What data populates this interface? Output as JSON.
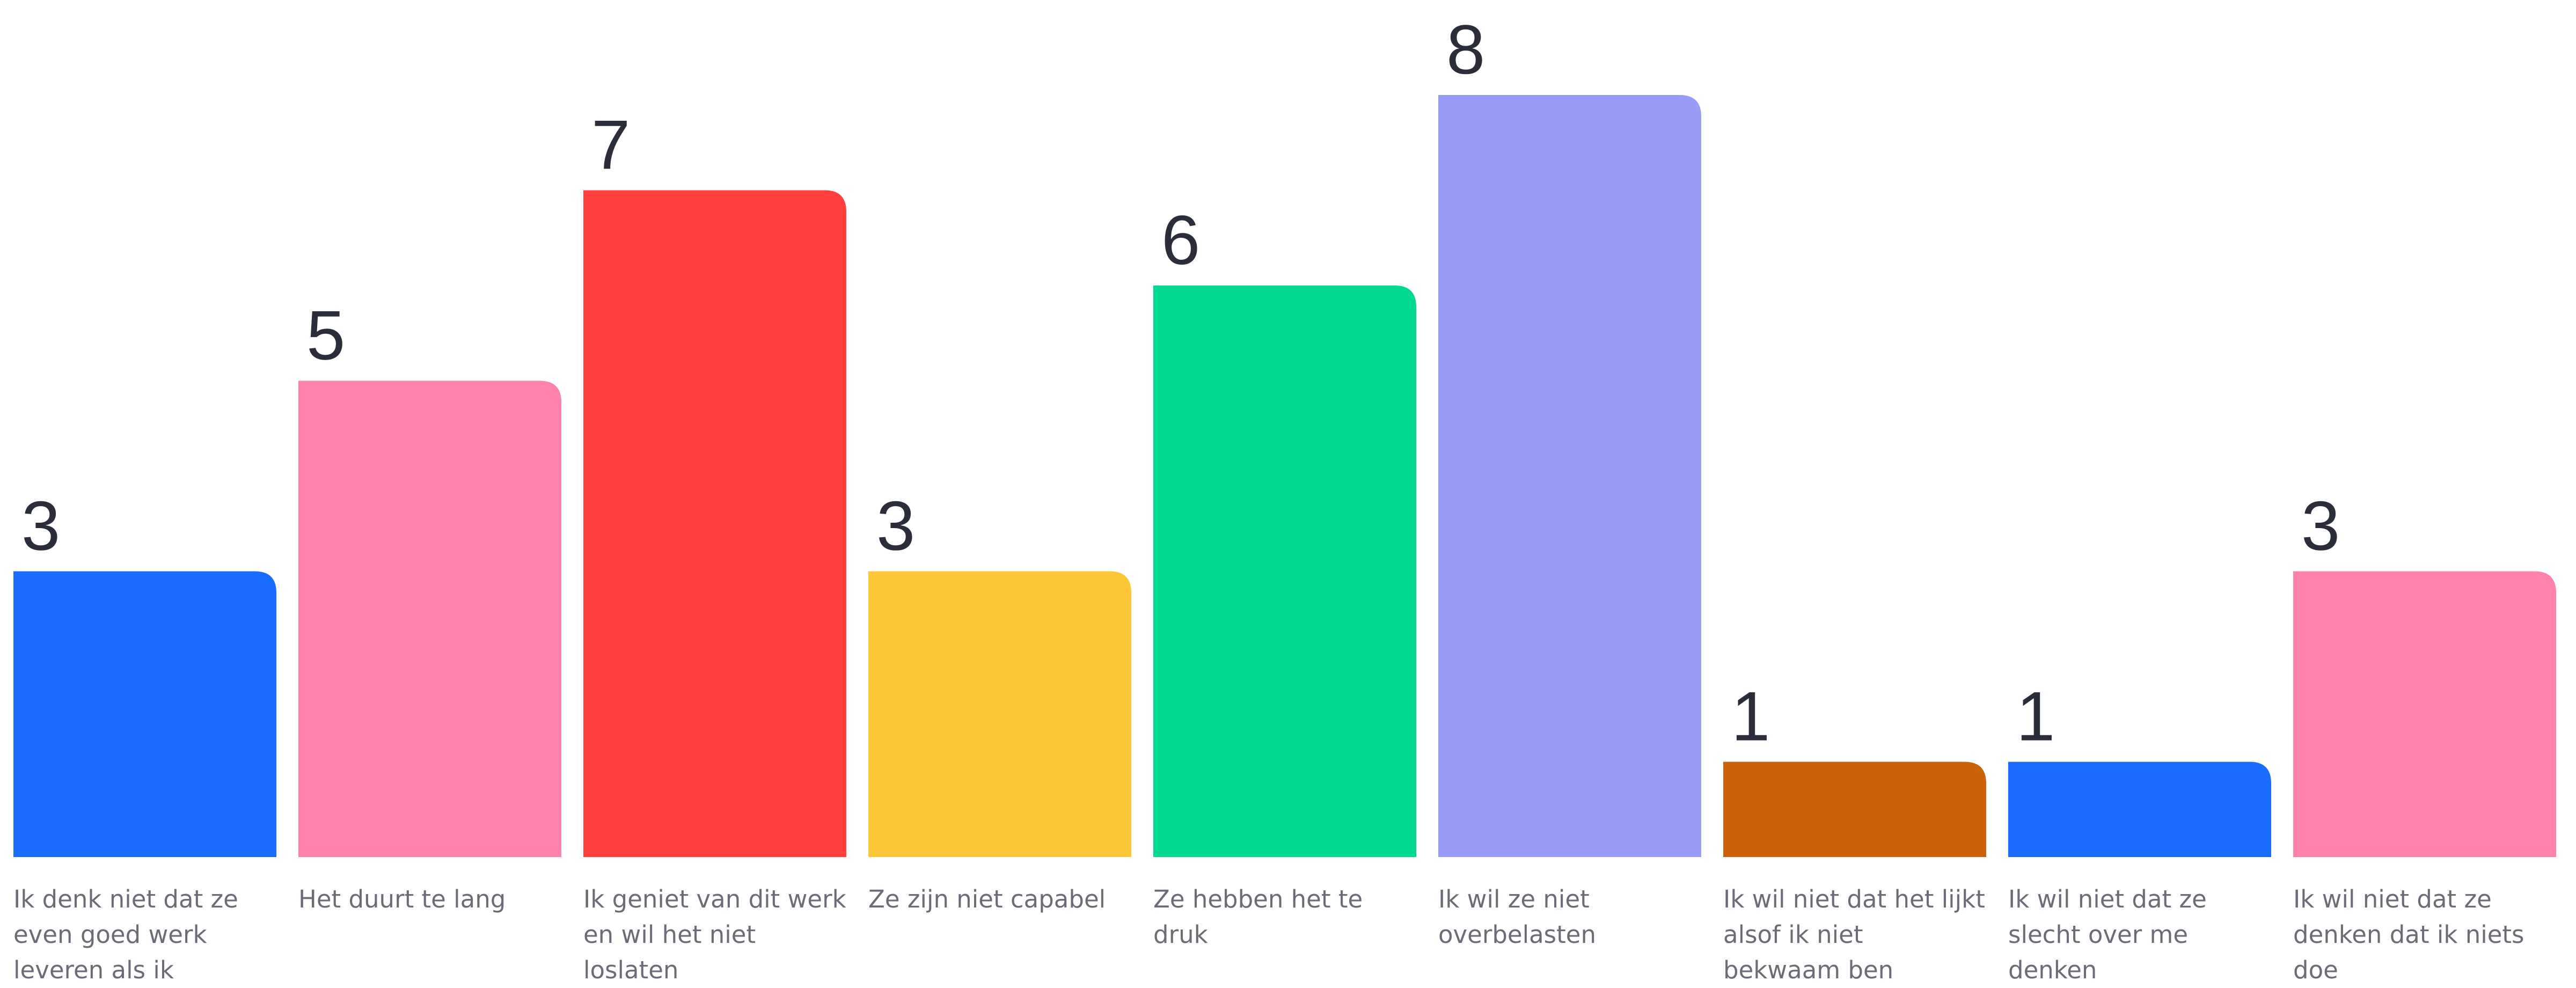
{
  "chart_data": {
    "type": "bar",
    "title": "",
    "xlabel": "",
    "ylabel": "",
    "ylim": [
      0,
      8
    ],
    "grid": false,
    "categories": [
      "Ik denk niet dat ze even goed werk leveren als ik",
      "Het duurt te lang",
      "Ik geniet van dit werk en wil het niet loslaten",
      "Ze zijn niet capabel",
      "Ze hebben het te druk",
      "Ik wil ze niet overbelasten",
      "Ik wil niet dat het lijkt alsof ik niet bekwaam ben",
      "Ik wil niet dat ze slecht over me denken",
      "Ik wil niet dat ze denken dat ik niets doe"
    ],
    "values": [
      3,
      5,
      7,
      3,
      6,
      8,
      1,
      1,
      3
    ],
    "colors": [
      "#1a6cff",
      "#ff82ad",
      "#ff403d",
      "#fdc538",
      "#00d98f",
      "#979cf6",
      "#cb620a",
      "#1a6cff",
      "#ff82ad"
    ]
  }
}
